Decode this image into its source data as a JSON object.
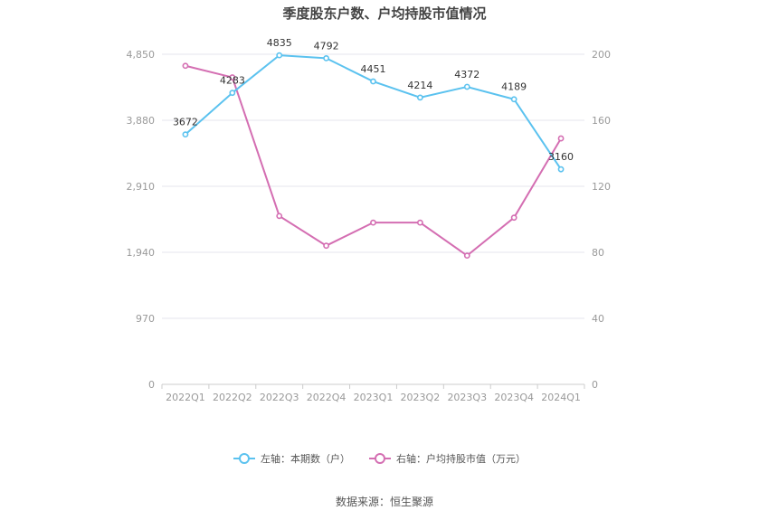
{
  "title": "季度股东户数、户均持股市值情况",
  "source": "数据来源：恒生聚源",
  "colors": {
    "left_series": "#5bc2ef",
    "right_series": "#d46eb2",
    "grid": "#e6e6ee",
    "axis": "#cccccc"
  },
  "chart_data": {
    "type": "line",
    "categories": [
      "2022Q1",
      "2022Q2",
      "2022Q3",
      "2022Q4",
      "2023Q1",
      "2023Q2",
      "2023Q3",
      "2023Q4",
      "2024Q1"
    ],
    "y_left": {
      "ticks": [
        0,
        970,
        1940,
        2910,
        3880,
        4850
      ],
      "tick_labels": [
        "0",
        "970",
        "1,940",
        "2,910",
        "3,880",
        "4,850"
      ],
      "ylim": [
        0,
        4850
      ]
    },
    "y_right": {
      "ticks": [
        0,
        40,
        80,
        120,
        160,
        200
      ],
      "tick_labels": [
        "0",
        "40",
        "80",
        "120",
        "160",
        "200"
      ],
      "ylim": [
        0,
        200
      ]
    },
    "grid": true,
    "legend_position": "bottom-center",
    "series": [
      {
        "name": "左轴：本期数（户）",
        "axis": "left",
        "values": [
          3672,
          4283,
          4835,
          4792,
          4451,
          4214,
          4372,
          4189,
          3160
        ],
        "data_labels": [
          "3672",
          "4283",
          "4835",
          "4792",
          "4451",
          "4214",
          "4372",
          "4189",
          "3160"
        ]
      },
      {
        "name": "右轴：户均持股市值（万元）",
        "axis": "right",
        "values": [
          193,
          186,
          102,
          84,
          98,
          98,
          78,
          101,
          149
        ]
      }
    ]
  }
}
